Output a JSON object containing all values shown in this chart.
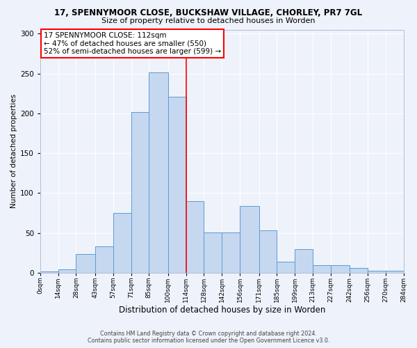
{
  "title1": "17, SPENNYMOOR CLOSE, BUCKSHAW VILLAGE, CHORLEY, PR7 7GL",
  "title2": "Size of property relative to detached houses in Worden",
  "xlabel": "Distribution of detached houses by size in Worden",
  "ylabel": "Number of detached properties",
  "annotation_line1": "17 SPENNYMOOR CLOSE: 112sqm",
  "annotation_line2": "← 47% of detached houses are smaller (550)",
  "annotation_line3": "52% of semi-detached houses are larger (599) →",
  "property_size": 112,
  "bin_edges": [
    0,
    14,
    28,
    43,
    57,
    71,
    85,
    100,
    114,
    128,
    142,
    156,
    171,
    185,
    199,
    213,
    227,
    242,
    256,
    270,
    284
  ],
  "bar_heights": [
    2,
    4,
    24,
    33,
    75,
    202,
    251,
    221,
    90,
    51,
    51,
    84,
    53,
    14,
    30,
    10,
    10,
    6,
    3,
    3
  ],
  "bar_color": "#c5d8f0",
  "bar_edge_color": "#5b9bd5",
  "vline_color": "red",
  "vline_x": 114,
  "background_color": "#eef2fa",
  "grid_color": "#ffffff",
  "footer_line1": "Contains HM Land Registry data © Crown copyright and database right 2024.",
  "footer_line2": "Contains public sector information licensed under the Open Government Licence v3.0.",
  "ylim": [
    0,
    305
  ],
  "yticks": [
    0,
    50,
    100,
    150,
    200,
    250,
    300
  ],
  "title1_fontsize": 8.5,
  "title2_fontsize": 8.0,
  "xlabel_fontsize": 8.5,
  "ylabel_fontsize": 7.5,
  "tick_fontsize": 6.5,
  "ytick_fontsize": 7.5,
  "annotation_fontsize": 7.5,
  "footer_fontsize": 5.8
}
